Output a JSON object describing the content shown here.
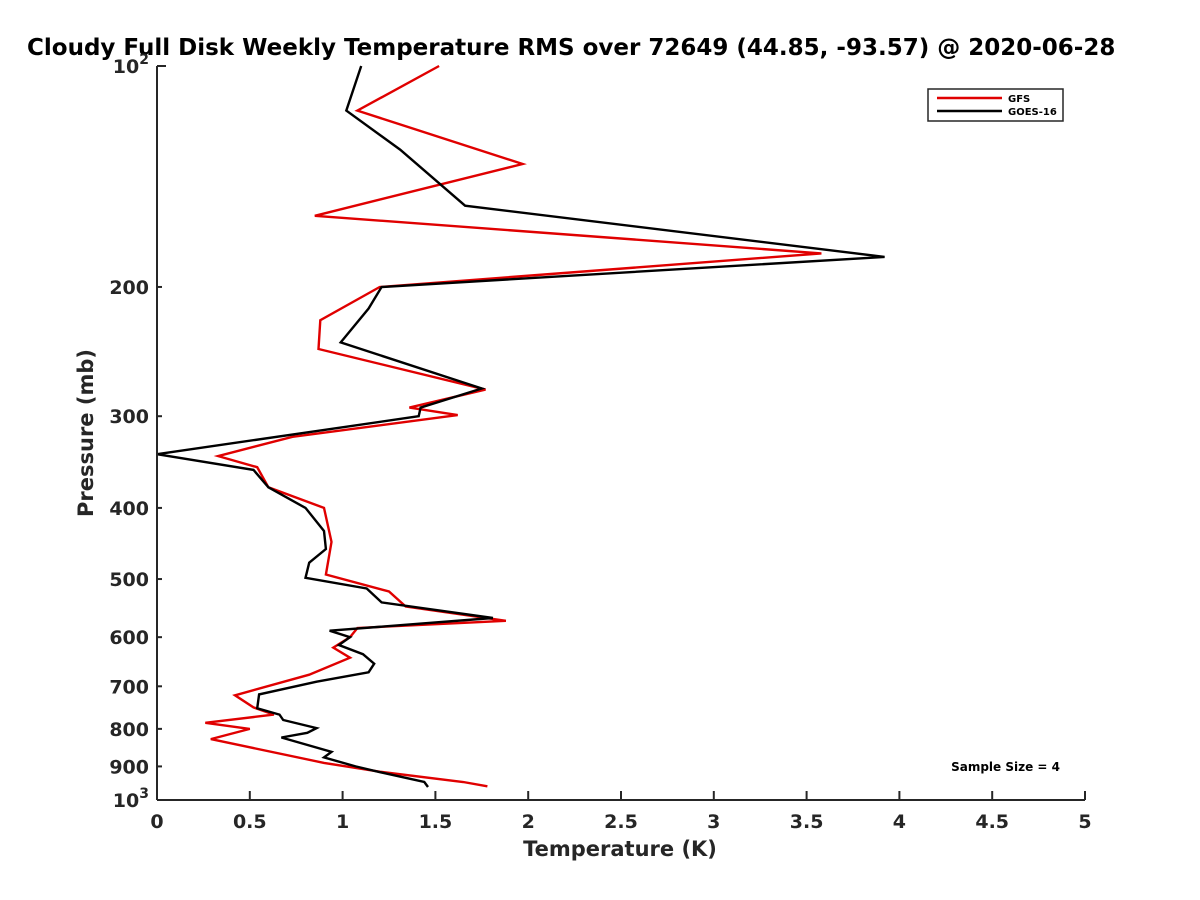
{
  "chart_data": {
    "type": "line",
    "title": "Cloudy Full Disk Weekly Temperature RMS over 72649 (44.85, -93.57) @ 2020-06-28",
    "xlabel": "Temperature (K)",
    "ylabel": "Pressure (mb)",
    "xlim": [
      0,
      5
    ],
    "ylim": [
      100,
      1000
    ],
    "yscale": "log",
    "y_reversed": true,
    "x_ticks": [
      "0",
      "0.5",
      "1",
      "1.5",
      "2",
      "2.5",
      "3",
      "3.5",
      "4",
      "4.5",
      "5"
    ],
    "y_ticks": [
      {
        "value": 100,
        "label": "10",
        "sup": "2"
      },
      {
        "value": 200,
        "label": "200",
        "sup": ""
      },
      {
        "value": 300,
        "label": "300",
        "sup": ""
      },
      {
        "value": 400,
        "label": "400",
        "sup": ""
      },
      {
        "value": 500,
        "label": "500",
        "sup": ""
      },
      {
        "value": 600,
        "label": "600",
        "sup": ""
      },
      {
        "value": 700,
        "label": "700",
        "sup": ""
      },
      {
        "value": 800,
        "label": "800",
        "sup": ""
      },
      {
        "value": 900,
        "label": "900",
        "sup": ""
      },
      {
        "value": 1000,
        "label": "10",
        "sup": "3"
      }
    ],
    "grid": false,
    "legend_position": "top-right",
    "annotation": "Sample Size = 4",
    "series": [
      {
        "name": "GFS",
        "color": "#e00000",
        "x": [
          1.52,
          1.08,
          1.97,
          0.85,
          3.58,
          1.2,
          0.88,
          0.87,
          1.77,
          1.36,
          1.62,
          0.73,
          0.33,
          0.54,
          0.6,
          0.9,
          0.94,
          0.91,
          1.25,
          1.34,
          1.88,
          1.08,
          1.04,
          0.95,
          1.04,
          0.82,
          0.42,
          0.52,
          0.63,
          0.26,
          0.5,
          0.29,
          0.9,
          1.2,
          1.65,
          1.78
        ],
        "y": [
          100,
          115,
          136,
          160,
          180,
          200,
          222,
          243,
          276,
          292,
          299,
          320,
          340,
          352,
          375,
          400,
          445,
          493,
          520,
          545,
          570,
          583,
          600,
          620,
          640,
          675,
          720,
          748,
          765,
          785,
          800,
          826,
          890,
          915,
          945,
          958
        ]
      },
      {
        "name": "GOES-16",
        "color": "#000000",
        "x": [
          1.1,
          1.02,
          1.31,
          1.66,
          3.92,
          1.21,
          1.14,
          0.99,
          1.75,
          1.42,
          1.41,
          0.0,
          0.52,
          0.6,
          0.8,
          0.9,
          0.91,
          0.82,
          0.8,
          1.13,
          1.21,
          1.81,
          0.93,
          1.04,
          0.98,
          1.11,
          1.17,
          1.14,
          0.86,
          0.55,
          0.54,
          0.66,
          0.68,
          0.86,
          0.81,
          0.67,
          0.94,
          0.9,
          1.07,
          1.19,
          1.44,
          1.46
        ],
        "y": [
          100,
          115,
          130,
          155,
          182,
          200,
          214,
          238,
          275,
          292,
          300,
          338,
          355,
          375,
          400,
          430,
          455,
          475,
          498,
          515,
          538,
          565,
          588,
          600,
          615,
          633,
          652,
          670,
          690,
          718,
          750,
          765,
          778,
          798,
          810,
          822,
          860,
          875,
          900,
          915,
          945,
          960
        ]
      }
    ]
  }
}
